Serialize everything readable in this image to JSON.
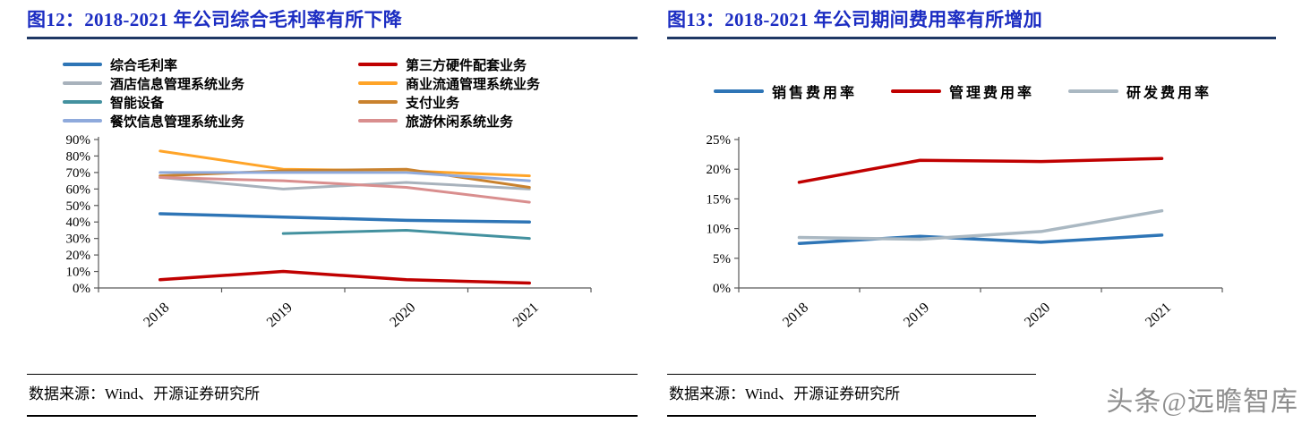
{
  "watermark": "头条@远瞻智库",
  "colors": {
    "title": "#1C2DC2",
    "title_rule": "#1F3864",
    "axis": "#595959",
    "watermark": "#8E8E8E"
  },
  "panels": [
    {
      "title": "图12：2018-2021 年公司综合毛利率有所下降",
      "source": "数据来源：Wind、开源证券研究所"
    },
    {
      "title": "图13：2018-2021 年公司期间费用率有所增加",
      "source": "数据来源：Wind、开源证券研究所"
    }
  ],
  "chart_data": [
    {
      "type": "line",
      "title": "图12：2018-2021 年公司综合毛利率有所下降",
      "categories": [
        "2018",
        "2019",
        "2020",
        "2021"
      ],
      "ylim": [
        0,
        90
      ],
      "ytick_step": 10,
      "ytick_suffix": "%",
      "grid": false,
      "legend_position": "top",
      "legend_columns": 2,
      "series": [
        {
          "name": "综合毛利率",
          "color": "#2E75B6",
          "width": 3.5,
          "values": [
            45,
            43,
            41,
            40
          ]
        },
        {
          "name": "第三方硬件配套业务",
          "color": "#C00000",
          "width": 3.5,
          "values": [
            5,
            10,
            5,
            3
          ]
        },
        {
          "name": "酒店信息管理系统业务",
          "color": "#A8B2BC",
          "width": 3,
          "values": [
            67,
            60,
            64,
            60
          ]
        },
        {
          "name": "商业流通管理系统业务",
          "color": "#FFA428",
          "width": 3,
          "values": [
            83,
            72,
            71,
            68
          ]
        },
        {
          "name": "智能设备",
          "color": "#43919F",
          "width": 3,
          "values": [
            null,
            33,
            35,
            30
          ]
        },
        {
          "name": "支付业务",
          "color": "#C9822E",
          "width": 3,
          "values": [
            68,
            71,
            72,
            61
          ]
        },
        {
          "name": "餐饮信息管理系统业务",
          "color": "#8FAADC",
          "width": 3,
          "values": [
            70,
            70,
            70,
            65
          ]
        },
        {
          "name": "旅游休闲系统业务",
          "color": "#D98E8E",
          "width": 3,
          "values": [
            67,
            65,
            61,
            52
          ]
        }
      ]
    },
    {
      "type": "line",
      "title": "图13：2018-2021 年公司期间费用率有所增加",
      "categories": [
        "2018",
        "2019",
        "2020",
        "2021"
      ],
      "ylim": [
        0,
        25
      ],
      "ytick_step": 5,
      "ytick_suffix": "%",
      "grid": false,
      "legend_position": "top",
      "legend_columns": 3,
      "series": [
        {
          "name": "销售费用率",
          "color": "#2E75B6",
          "width": 3.5,
          "values": [
            7.5,
            8.7,
            7.7,
            8.9
          ]
        },
        {
          "name": "管理费用率",
          "color": "#C00000",
          "width": 3.5,
          "values": [
            17.8,
            21.5,
            21.3,
            21.8
          ]
        },
        {
          "name": "研发费用率",
          "color": "#AAB8C2",
          "width": 3.5,
          "values": [
            8.5,
            8.2,
            9.5,
            13
          ]
        }
      ]
    }
  ]
}
